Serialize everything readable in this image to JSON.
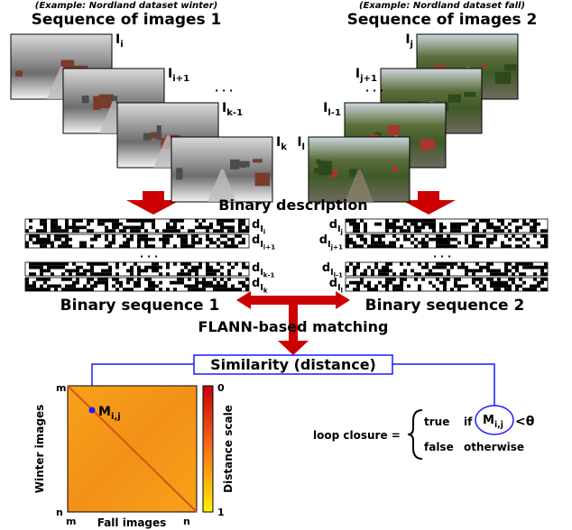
{
  "left": {
    "example": "(Example: Nordland dataset winter)",
    "title": "Sequence of images 1",
    "images": [
      {
        "main": "I",
        "sub": "i"
      },
      {
        "main": "I",
        "sub": "i+1"
      },
      {
        "main": "I",
        "sub": "k-1"
      },
      {
        "main": "I",
        "sub": "k"
      }
    ],
    "dots": "· · ·",
    "descriptors": [
      {
        "main": "d",
        "sub": "I",
        "subsub": "i"
      },
      {
        "main": "d",
        "sub": "I",
        "subsub": "i+1"
      },
      {
        "main": "d",
        "sub": "I",
        "subsub": "k-1"
      },
      {
        "main": "d",
        "sub": "I",
        "subsub": "k"
      }
    ],
    "sequence": "Binary sequence 1"
  },
  "right": {
    "example": "(Example: Nordland dataset fall)",
    "title": "Sequence of images 2",
    "images": [
      {
        "main": "I",
        "sub": "j"
      },
      {
        "main": "I",
        "sub": "j+1"
      },
      {
        "main": "I",
        "sub": "l-1"
      },
      {
        "main": "I",
        "sub": "l"
      }
    ],
    "dots": "· · ·",
    "descriptors": [
      {
        "main": "d",
        "sub": "I",
        "subsub": "j"
      },
      {
        "main": "d",
        "sub": "I",
        "subsub": "j+1"
      },
      {
        "main": "d",
        "sub": "I",
        "subsub": "l-1"
      },
      {
        "main": "d",
        "sub": "I",
        "subsub": "l"
      }
    ],
    "sequence": "Binary sequence 2"
  },
  "binary_description": "Binary description",
  "matching": "FLANN-based matching",
  "similarity": "Similarity (distance)",
  "matrix": {
    "y_top": "m",
    "y_bottom": "n",
    "x_left": "m",
    "x_right": "n",
    "y_label": "Winter images",
    "x_label": "Fall images",
    "point": {
      "main": "M",
      "sub": "i,j"
    },
    "scale_top": "0",
    "scale_bottom": "1",
    "scale_label": "Distance scale"
  },
  "rule": {
    "lhs": "loop closure =",
    "true": "true",
    "if": "if",
    "m": {
      "main": "M",
      "sub": "i,j"
    },
    "threshold": "<θ",
    "false": "false",
    "otherwise": "otherwise"
  }
}
